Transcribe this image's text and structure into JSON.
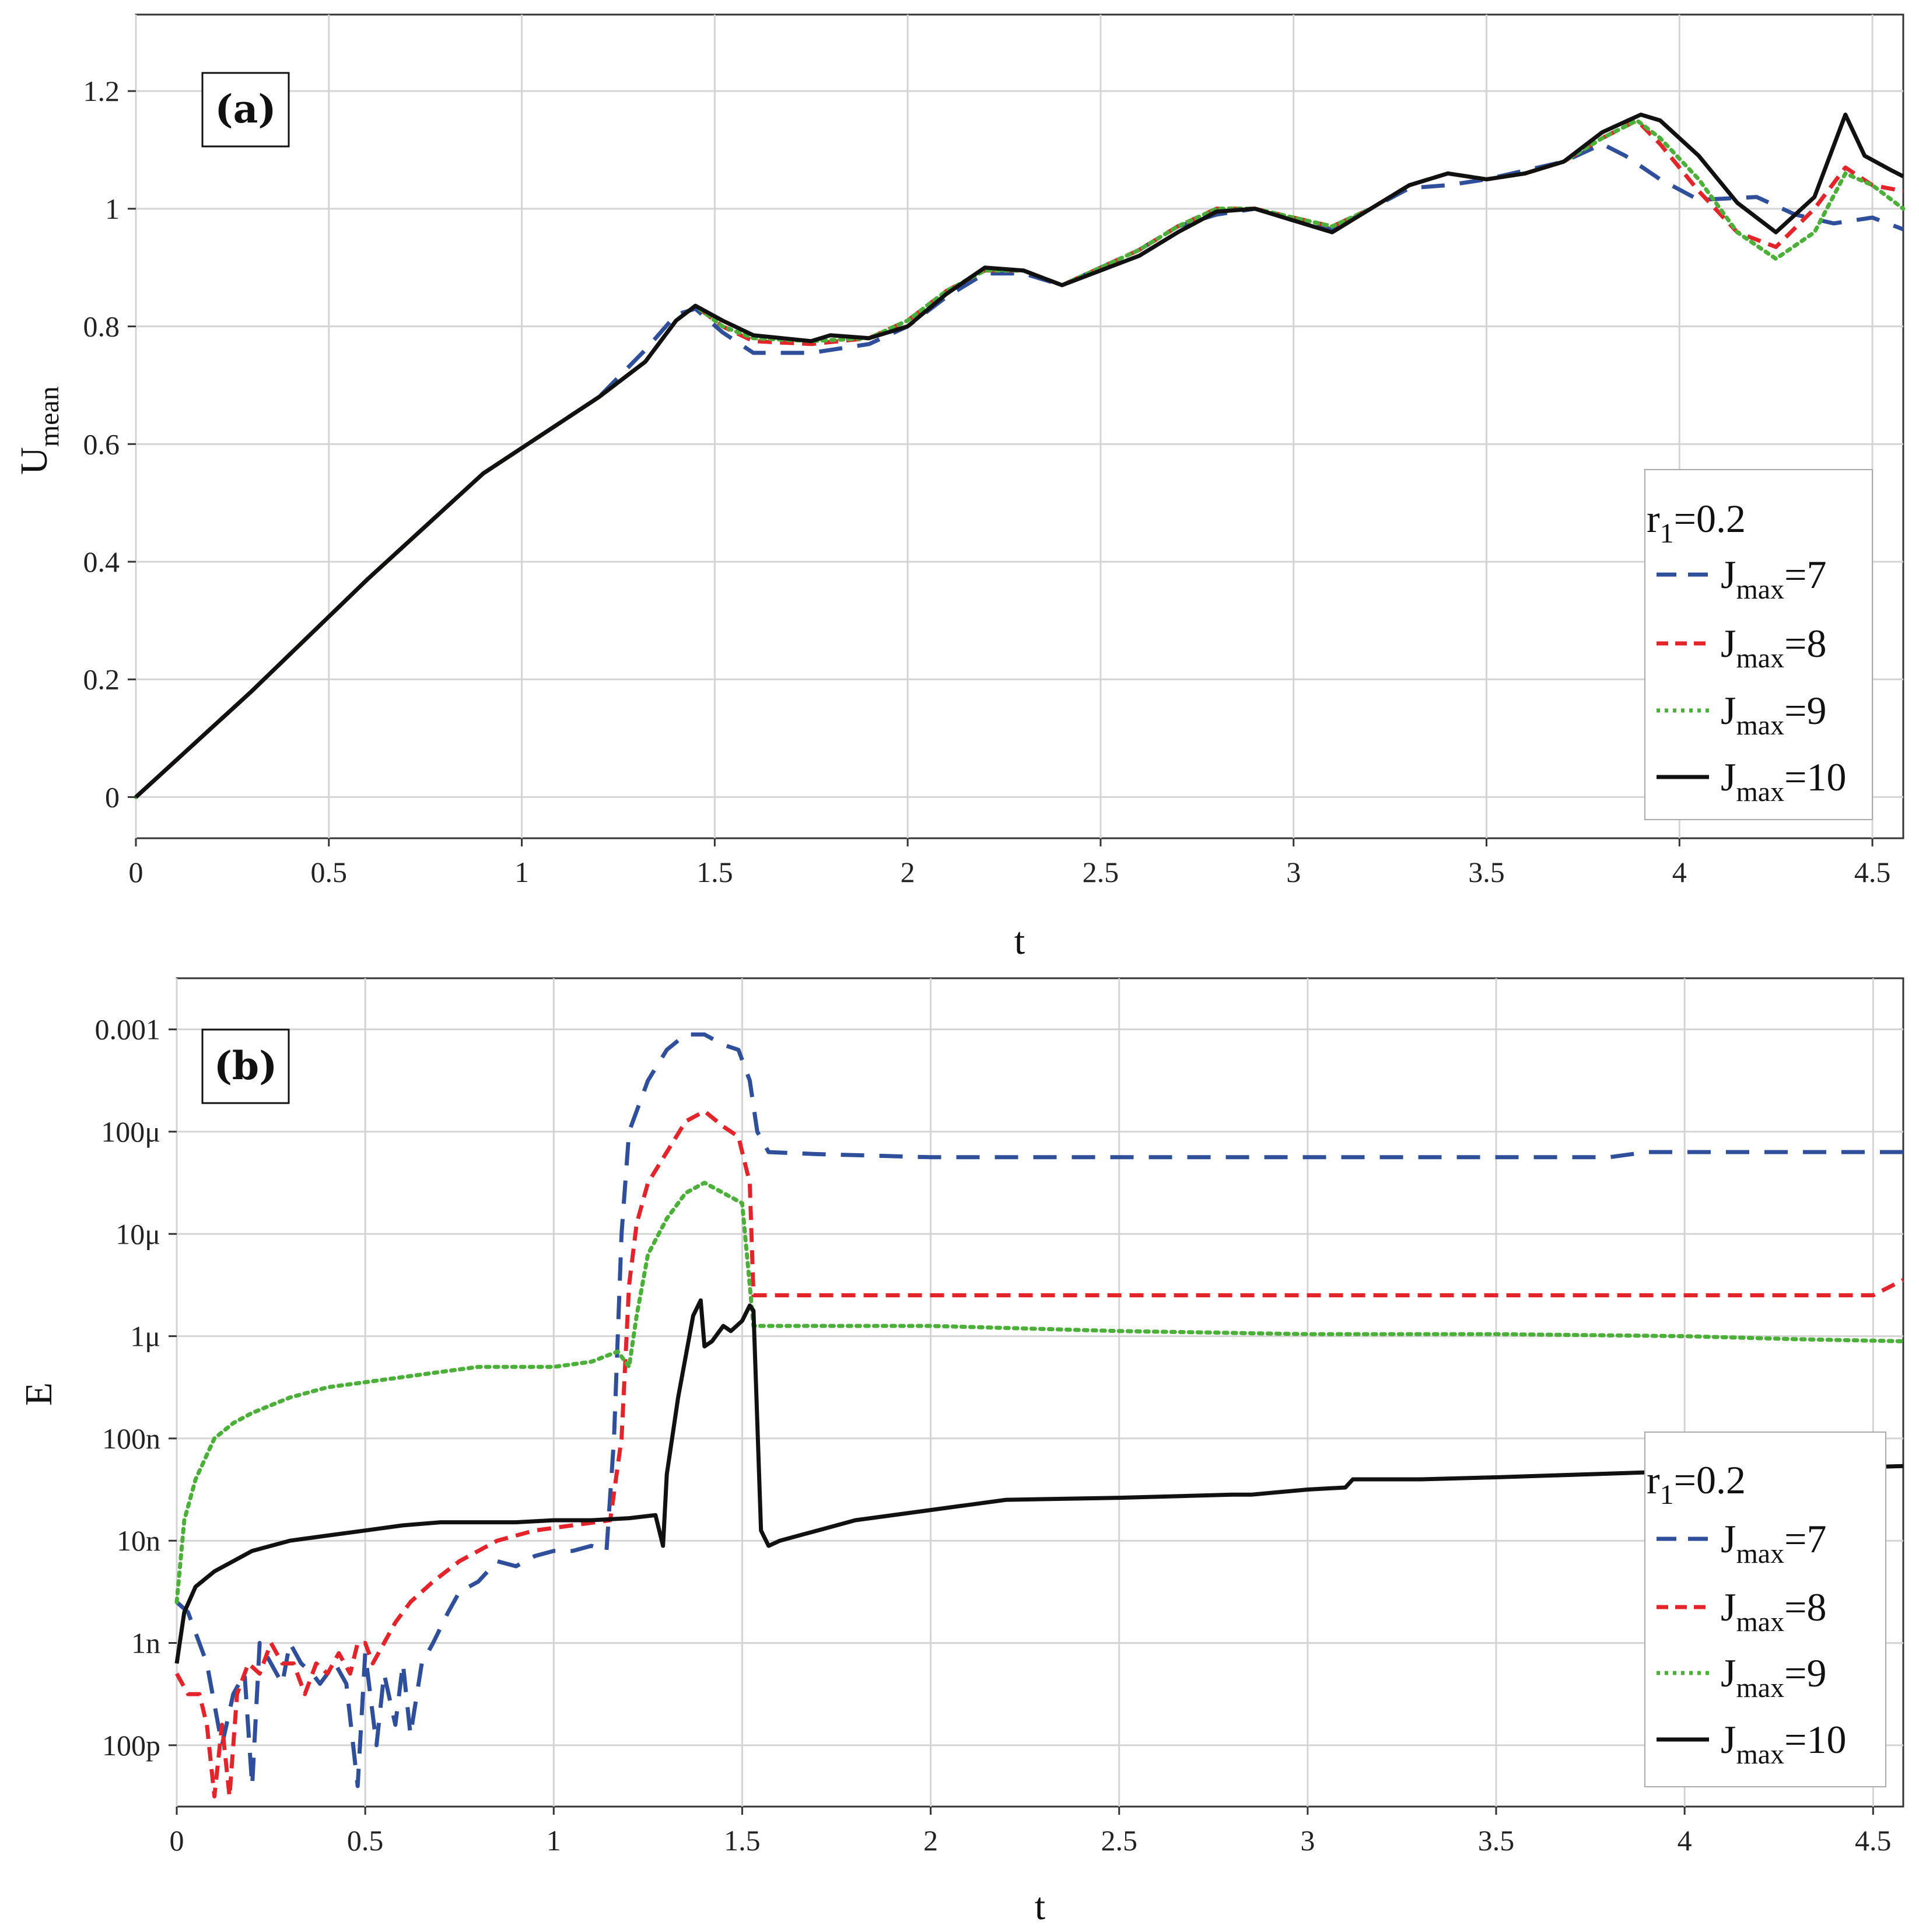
{
  "chart_data": [
    {
      "type": "line",
      "panel_label": "(a)",
      "xlabel": "t",
      "ylabel": "U",
      "ylabel_sub": "mean",
      "yscale": "linear",
      "xlim": [
        0,
        4.58
      ],
      "ylim": [
        -0.07,
        1.33
      ],
      "xticks": [
        "0",
        "0.5",
        "1",
        "1.5",
        "2",
        "2.5",
        "3",
        "3.5",
        "4",
        "4.5"
      ],
      "yticks": [
        "0",
        "0.2",
        "0.4",
        "0.6",
        "0.8",
        "1",
        "1.2"
      ],
      "legend": {
        "title_main": "r",
        "title_sub": "1",
        "title_rest": "=0.2",
        "placement": "bottom-right",
        "entries": [
          {
            "main": "J",
            "sub": "max",
            "rest": "=7"
          },
          {
            "main": "J",
            "sub": "max",
            "rest": "=8"
          },
          {
            "main": "J",
            "sub": "max",
            "rest": "=9"
          },
          {
            "main": "J",
            "sub": "max",
            "rest": "=10"
          }
        ]
      },
      "series": [
        {
          "name": "Jmax=7",
          "color": "#2f4f9a",
          "dash": "dashed-long",
          "x": [
            0,
            0.3,
            0.6,
            0.9,
            1.2,
            1.32,
            1.4,
            1.45,
            1.52,
            1.6,
            1.75,
            1.9,
            2.0,
            2.1,
            2.2,
            2.3,
            2.4,
            2.5,
            2.6,
            2.7,
            2.8,
            2.9,
            3.0,
            3.1,
            3.2,
            3.3,
            3.4,
            3.5,
            3.6,
            3.7,
            3.8,
            3.86,
            3.95,
            4.05,
            4.2,
            4.3,
            4.4,
            4.5,
            4.58
          ],
          "y": [
            0,
            0.18,
            0.37,
            0.55,
            0.68,
            0.76,
            0.82,
            0.83,
            0.79,
            0.755,
            0.755,
            0.77,
            0.8,
            0.85,
            0.89,
            0.89,
            0.87,
            0.9,
            0.93,
            0.97,
            0.99,
            1.0,
            0.98,
            0.965,
            1.0,
            1.035,
            1.04,
            1.05,
            1.065,
            1.08,
            1.11,
            1.09,
            1.05,
            1.015,
            1.02,
            0.99,
            0.975,
            0.985,
            0.965
          ]
        },
        {
          "name": "Jmax=8",
          "color": "#e3242b",
          "dash": "dashed",
          "x": [
            0,
            0.3,
            0.6,
            0.9,
            1.2,
            1.32,
            1.4,
            1.45,
            1.52,
            1.6,
            1.75,
            1.9,
            2.0,
            2.1,
            2.2,
            2.3,
            2.4,
            2.5,
            2.6,
            2.7,
            2.8,
            2.9,
            3.0,
            3.1,
            3.2,
            3.3,
            3.4,
            3.5,
            3.6,
            3.7,
            3.8,
            3.89,
            3.95,
            4.05,
            4.15,
            4.25,
            4.35,
            4.43,
            4.5,
            4.58
          ],
          "y": [
            0,
            0.18,
            0.37,
            0.55,
            0.68,
            0.74,
            0.81,
            0.835,
            0.8,
            0.775,
            0.77,
            0.78,
            0.81,
            0.86,
            0.895,
            0.895,
            0.87,
            0.9,
            0.93,
            0.97,
            1.0,
            1.0,
            0.985,
            0.97,
            1.0,
            1.04,
            1.06,
            1.05,
            1.06,
            1.08,
            1.12,
            1.15,
            1.11,
            1.03,
            0.96,
            0.935,
            1.0,
            1.07,
            1.04,
            1.03
          ]
        },
        {
          "name": "Jmax=9",
          "color": "#4caf3a",
          "dash": "dotted",
          "x": [
            0,
            0.3,
            0.6,
            0.9,
            1.2,
            1.32,
            1.4,
            1.45,
            1.52,
            1.6,
            1.75,
            1.9,
            2.0,
            2.1,
            2.2,
            2.3,
            2.4,
            2.5,
            2.6,
            2.7,
            2.8,
            2.9,
            3.0,
            3.1,
            3.2,
            3.3,
            3.4,
            3.5,
            3.6,
            3.7,
            3.8,
            3.89,
            3.95,
            4.05,
            4.15,
            4.25,
            4.35,
            4.43,
            4.5,
            4.58
          ],
          "y": [
            0,
            0.18,
            0.37,
            0.55,
            0.68,
            0.74,
            0.81,
            0.835,
            0.8,
            0.78,
            0.775,
            0.78,
            0.81,
            0.86,
            0.895,
            0.895,
            0.87,
            0.9,
            0.93,
            0.97,
            1.0,
            1.0,
            0.985,
            0.97,
            1.0,
            1.04,
            1.06,
            1.05,
            1.06,
            1.08,
            1.12,
            1.15,
            1.12,
            1.05,
            0.96,
            0.915,
            0.96,
            1.06,
            1.04,
            1.0
          ]
        },
        {
          "name": "Jmax=10",
          "color": "#111111",
          "dash": "solid",
          "x": [
            0,
            0.3,
            0.6,
            0.9,
            1.2,
            1.32,
            1.4,
            1.45,
            1.52,
            1.6,
            1.75,
            1.8,
            1.9,
            2.0,
            2.1,
            2.2,
            2.3,
            2.4,
            2.5,
            2.6,
            2.7,
            2.8,
            2.9,
            3.0,
            3.1,
            3.2,
            3.3,
            3.4,
            3.5,
            3.6,
            3.7,
            3.8,
            3.9,
            3.95,
            4.05,
            4.15,
            4.25,
            4.35,
            4.43,
            4.48,
            4.55,
            4.58
          ],
          "y": [
            0,
            0.18,
            0.37,
            0.55,
            0.68,
            0.74,
            0.81,
            0.835,
            0.81,
            0.785,
            0.775,
            0.785,
            0.78,
            0.8,
            0.855,
            0.9,
            0.895,
            0.87,
            0.895,
            0.92,
            0.96,
            0.995,
            1.0,
            0.98,
            0.96,
            1.0,
            1.04,
            1.06,
            1.05,
            1.06,
            1.08,
            1.13,
            1.16,
            1.15,
            1.09,
            1.01,
            0.96,
            1.02,
            1.16,
            1.09,
            1.065,
            1.055
          ]
        }
      ]
    },
    {
      "type": "line",
      "panel_label": "(b)",
      "xlabel": "t",
      "ylabel": "E",
      "yscale": "log",
      "xlim": [
        0,
        4.58
      ],
      "ylim_log10": [
        -10.6,
        -2.5
      ],
      "xticks": [
        "0",
        "0.5",
        "1",
        "1.5",
        "2",
        "2.5",
        "3",
        "3.5",
        "4",
        "4.5"
      ],
      "yticks": [
        "100p",
        "1n",
        "10n",
        "100n",
        "1μ",
        "10μ",
        "100μ",
        "0.001"
      ],
      "legend": {
        "title_main": "r",
        "title_sub": "1",
        "title_rest": "=0.2",
        "placement": "bottom-right",
        "entries": [
          {
            "main": "J",
            "sub": "max",
            "rest": "=7"
          },
          {
            "main": "J",
            "sub": "max",
            "rest": "=8"
          },
          {
            "main": "J",
            "sub": "max",
            "rest": "=9"
          },
          {
            "main": "J",
            "sub": "max",
            "rest": "=10"
          }
        ]
      },
      "series": [
        {
          "name": "Jmax=7",
          "color": "#2f4f9a",
          "dash": "dashed-long",
          "x": [
            0,
            0.03,
            0.05,
            0.08,
            0.1,
            0.12,
            0.15,
            0.18,
            0.2,
            0.22,
            0.25,
            0.28,
            0.3,
            0.33,
            0.36,
            0.38,
            0.42,
            0.45,
            0.48,
            0.5,
            0.53,
            0.55,
            0.58,
            0.6,
            0.62,
            0.65,
            0.68,
            0.72,
            0.75,
            0.8,
            0.85,
            0.9,
            0.95,
            1.0,
            1.05,
            1.1,
            1.14,
            1.16,
            1.18,
            1.2,
            1.25,
            1.3,
            1.35,
            1.4,
            1.45,
            1.49,
            1.52,
            1.54,
            1.57,
            1.7,
            2.0,
            2.5,
            3.0,
            3.5,
            3.8,
            3.9,
            4.0,
            4.3,
            4.58
          ],
          "y": [
            -8.6,
            -8.7,
            -8.9,
            -9.2,
            -9.6,
            -10.0,
            -9.5,
            -9.3,
            -10.4,
            -9.0,
            -9.2,
            -9.4,
            -9.0,
            -9.2,
            -9.3,
            -9.4,
            -9.2,
            -9.4,
            -10.4,
            -9.1,
            -10.0,
            -9.3,
            -9.8,
            -9.2,
            -9.9,
            -9.2,
            -9.0,
            -8.7,
            -8.5,
            -8.4,
            -8.2,
            -8.25,
            -8.15,
            -8.1,
            -8.1,
            -8.05,
            -8.1,
            -7.0,
            -5.0,
            -4.0,
            -3.5,
            -3.2,
            -3.05,
            -3.05,
            -3.15,
            -3.2,
            -3.5,
            -4.0,
            -4.2,
            -4.22,
            -4.25,
            -4.25,
            -4.25,
            -4.25,
            -4.25,
            -4.2,
            -4.2,
            -4.2,
            -4.2
          ]
        },
        {
          "name": "Jmax=8",
          "color": "#e3242b",
          "dash": "dashed",
          "x": [
            0,
            0.03,
            0.06,
            0.08,
            0.1,
            0.12,
            0.14,
            0.16,
            0.19,
            0.22,
            0.25,
            0.28,
            0.31,
            0.34,
            0.37,
            0.4,
            0.43,
            0.46,
            0.48,
            0.5,
            0.52,
            0.55,
            0.58,
            0.62,
            0.68,
            0.75,
            0.85,
            0.95,
            1.05,
            1.15,
            1.18,
            1.2,
            1.22,
            1.25,
            1.3,
            1.35,
            1.4,
            1.45,
            1.49,
            1.52,
            1.53,
            1.6,
            2.0,
            3.0,
            4.0,
            4.5,
            4.58
          ],
          "y": [
            -9.3,
            -9.5,
            -9.5,
            -9.8,
            -10.5,
            -9.8,
            -10.5,
            -9.5,
            -9.2,
            -9.3,
            -9.0,
            -9.2,
            -9.2,
            -9.5,
            -9.2,
            -9.3,
            -9.1,
            -9.3,
            -9.0,
            -9.0,
            -9.2,
            -9.0,
            -8.8,
            -8.6,
            -8.4,
            -8.2,
            -8.0,
            -7.9,
            -7.85,
            -7.8,
            -7.0,
            -5.5,
            -4.9,
            -4.5,
            -4.2,
            -3.9,
            -3.8,
            -3.95,
            -4.05,
            -4.5,
            -5.6,
            -5.6,
            -5.6,
            -5.6,
            -5.6,
            -5.6,
            -5.45
          ]
        },
        {
          "name": "Jmax=9",
          "color": "#4caf3a",
          "dash": "dotted",
          "x": [
            0,
            0.02,
            0.05,
            0.1,
            0.15,
            0.2,
            0.3,
            0.4,
            0.5,
            0.6,
            0.7,
            0.8,
            0.9,
            1.0,
            1.1,
            1.17,
            1.2,
            1.22,
            1.25,
            1.3,
            1.35,
            1.4,
            1.45,
            1.5,
            1.53,
            1.6,
            2.0,
            2.5,
            3.0,
            3.5,
            4.0,
            4.3,
            4.58
          ],
          "y": [
            -8.6,
            -7.8,
            -7.4,
            -7.0,
            -6.85,
            -6.75,
            -6.6,
            -6.5,
            -6.45,
            -6.4,
            -6.35,
            -6.3,
            -6.3,
            -6.3,
            -6.25,
            -6.15,
            -6.3,
            -5.8,
            -5.2,
            -4.85,
            -4.6,
            -4.5,
            -4.6,
            -4.7,
            -5.9,
            -5.9,
            -5.9,
            -5.95,
            -5.98,
            -5.98,
            -6.0,
            -6.03,
            -6.05
          ]
        },
        {
          "name": "Jmax=10",
          "color": "#111111",
          "dash": "solid",
          "x": [
            0,
            0.02,
            0.05,
            0.1,
            0.15,
            0.2,
            0.3,
            0.4,
            0.5,
            0.6,
            0.7,
            0.8,
            0.9,
            1.0,
            1.1,
            1.2,
            1.27,
            1.29,
            1.3,
            1.33,
            1.35,
            1.37,
            1.39,
            1.4,
            1.42,
            1.45,
            1.47,
            1.5,
            1.52,
            1.53,
            1.55,
            1.57,
            1.6,
            1.65,
            1.7,
            1.8,
            1.9,
            2.0,
            2.2,
            2.5,
            2.8,
            2.85,
            3.0,
            3.1,
            3.12,
            3.3,
            3.5,
            4.0,
            4.3,
            4.58
          ],
          "y": [
            -9.2,
            -8.7,
            -8.45,
            -8.3,
            -8.2,
            -8.1,
            -8.0,
            -7.95,
            -7.9,
            -7.85,
            -7.82,
            -7.82,
            -7.82,
            -7.8,
            -7.8,
            -7.78,
            -7.75,
            -8.05,
            -7.35,
            -6.6,
            -6.2,
            -5.8,
            -5.65,
            -6.1,
            -6.05,
            -5.9,
            -5.95,
            -5.85,
            -5.7,
            -5.75,
            -7.9,
            -8.05,
            -8.0,
            -7.95,
            -7.9,
            -7.8,
            -7.75,
            -7.7,
            -7.6,
            -7.58,
            -7.55,
            -7.55,
            -7.5,
            -7.48,
            -7.4,
            -7.4,
            -7.38,
            -7.32,
            -7.3,
            -7.27
          ]
        }
      ]
    }
  ]
}
